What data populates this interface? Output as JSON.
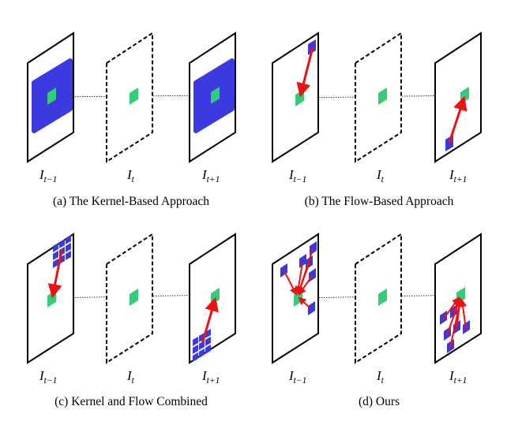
{
  "panels": [
    {
      "caption": "(a) The Kernel-Based Approach",
      "frames": [
        {
          "label_main": "I",
          "label_sub": "t−1"
        },
        {
          "label_main": "I",
          "label_sub": "t"
        },
        {
          "label_main": "I",
          "label_sub": "t+1"
        }
      ]
    },
    {
      "caption": "(b) The Flow-Based Approach",
      "frames": [
        {
          "label_main": "I",
          "label_sub": "t−1"
        },
        {
          "label_main": "I",
          "label_sub": "t"
        },
        {
          "label_main": "I",
          "label_sub": "t+1"
        }
      ]
    },
    {
      "caption": "(c) Kernel and Flow Combined",
      "frames": [
        {
          "label_main": "I",
          "label_sub": "t−1"
        },
        {
          "label_main": "I",
          "label_sub": "t"
        },
        {
          "label_main": "I",
          "label_sub": "t+1"
        }
      ]
    },
    {
      "caption": "(d) Ours",
      "frames": [
        {
          "label_main": "I",
          "label_sub": "t−1"
        },
        {
          "label_main": "I",
          "label_sub": "t"
        },
        {
          "label_main": "I",
          "label_sub": "t+1"
        }
      ]
    }
  ],
  "colors": {
    "frame_stroke": "#000000",
    "pixel_green": "#33cc77",
    "kernel_blue": "#3a3adf",
    "arrow_red": "#ee1111",
    "guide_line": "#000000"
  }
}
